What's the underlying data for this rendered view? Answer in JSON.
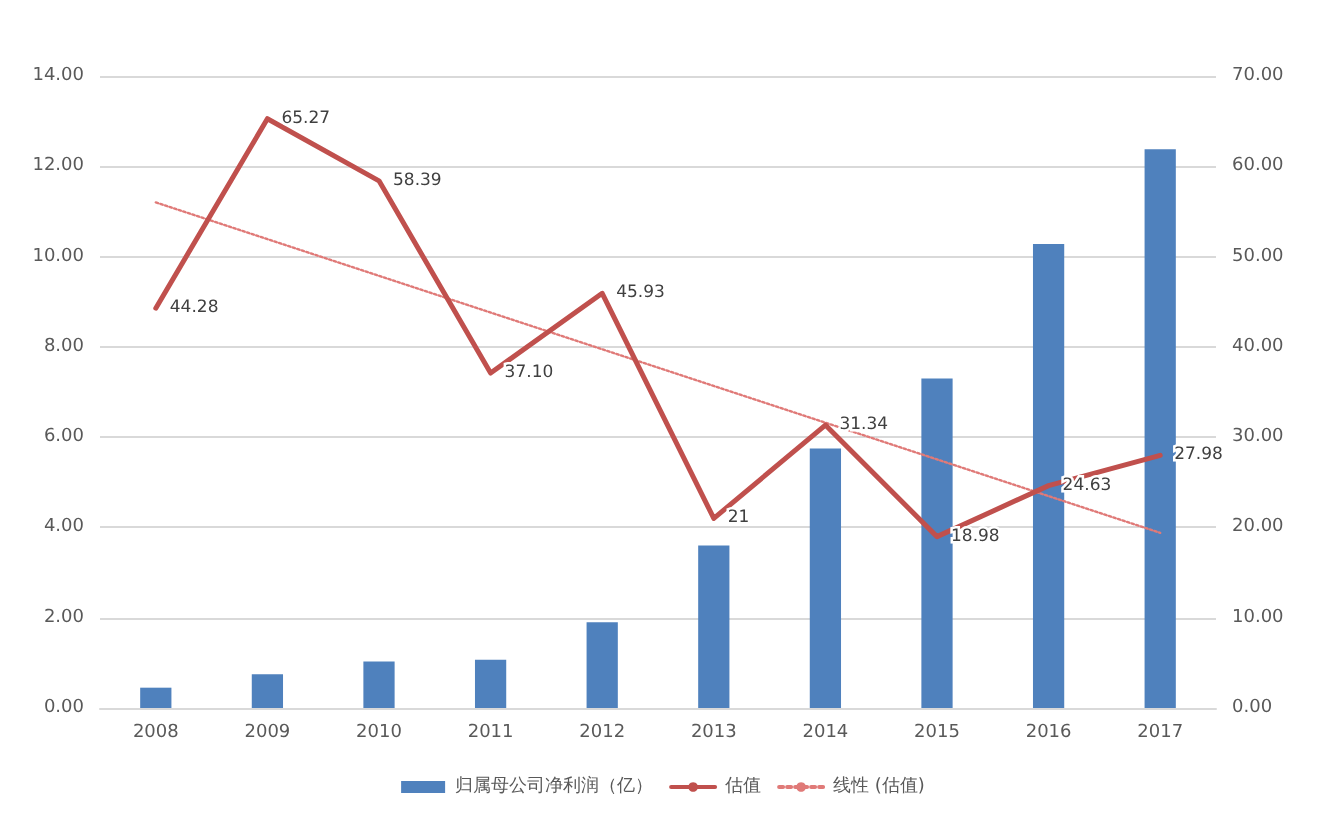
{
  "chart_data": {
    "type": "bar",
    "categories": [
      "2008",
      "2009",
      "2010",
      "2011",
      "2012",
      "2013",
      "2014",
      "2015",
      "2016",
      "2017"
    ],
    "series": [
      {
        "name": "归属母公司净利润（亿）",
        "color": "#4f81bd",
        "values": [
          0.45,
          0.75,
          1.03,
          1.07,
          1.9,
          3.6,
          5.75,
          7.3,
          10.28,
          12.38
        ]
      },
      {
        "name": "估值",
        "type": "line",
        "axis": "y2",
        "color": "#c0504d",
        "line_style": "solid",
        "values": [
          44.28,
          65.27,
          58.39,
          37.1,
          45.93,
          21,
          31.34,
          18.98,
          24.63,
          27.98
        ],
        "value_labels": [
          "44.28",
          "65.27",
          "58.39",
          "37.10",
          "45.93",
          "21",
          "31.34",
          "18.98",
          "24.63",
          "27.98"
        ]
      },
      {
        "name": "线性 (估值)",
        "type": "line",
        "axis": "y2",
        "color": "#e07a78",
        "line_style": "dotted",
        "values": [
          56,
          null,
          null,
          null,
          null,
          null,
          null,
          null,
          null,
          19.4
        ]
      }
    ],
    "ylim": [
      0,
      14
    ],
    "yticks": [
      {
        "value": 0,
        "label": "0.00"
      },
      {
        "value": 2,
        "label": "2.00"
      },
      {
        "value": 4,
        "label": "4.00"
      },
      {
        "value": 6,
        "label": "6.00"
      },
      {
        "value": 8,
        "label": "8.00"
      },
      {
        "value": 10,
        "label": "10.00"
      },
      {
        "value": 12,
        "label": "12.00"
      },
      {
        "value": 14,
        "label": "14.00"
      }
    ],
    "y2lim": [
      0,
      70
    ],
    "y2ticks": [
      {
        "value": 0,
        "label": "0.00"
      },
      {
        "value": 10,
        "label": "10.00"
      },
      {
        "value": 20,
        "label": "20.00"
      },
      {
        "value": 30,
        "label": "30.00"
      },
      {
        "value": 40,
        "label": "40.00"
      },
      {
        "value": 50,
        "label": "50.00"
      },
      {
        "value": 60,
        "label": "60.00"
      },
      {
        "value": 70,
        "label": "70.00"
      }
    ],
    "grid": "y",
    "legend": "bottom",
    "marker": "none"
  }
}
